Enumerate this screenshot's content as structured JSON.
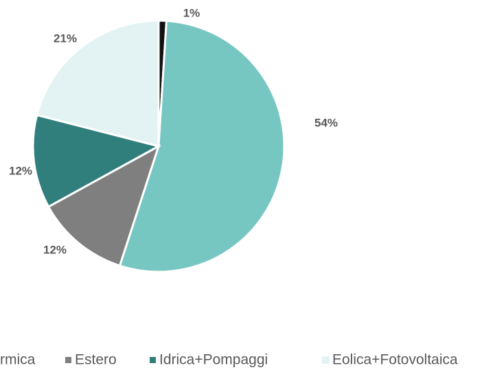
{
  "chart_data": {
    "type": "pie",
    "categories": [
      null,
      "rmica",
      "Estero",
      "Idrica+Pompaggi",
      "Eolica+Fotovoltaica"
    ],
    "values": [
      1,
      54,
      12,
      12,
      21
    ],
    "value_labels": [
      "1%",
      "54%",
      "12%",
      "12%",
      "21%"
    ],
    "colors": [
      "#111111",
      "#76c6c2",
      "#7f7f7f",
      "#317f7d",
      "#e3f3f3"
    ],
    "legend": "bottom"
  }
}
